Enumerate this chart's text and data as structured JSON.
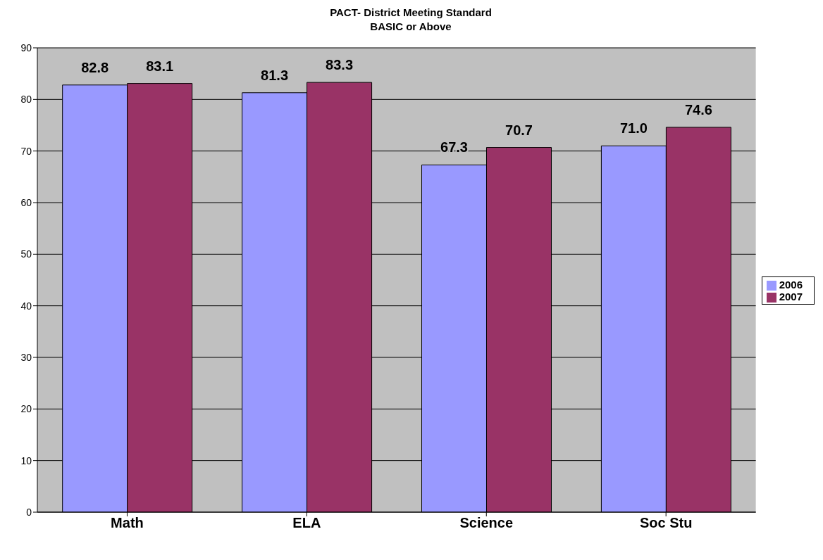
{
  "chart_data": {
    "type": "bar",
    "title": "PACT- District Meeting Standard",
    "subtitle": "BASIC or Above",
    "categories": [
      "Math",
      "ELA",
      "Science",
      "Soc Stu"
    ],
    "series": [
      {
        "name": "2006",
        "color": "#9999ff",
        "values": [
          82.8,
          81.3,
          67.3,
          71.0
        ],
        "value_labels": [
          "82.8",
          "81.3",
          "67.3",
          "71.0"
        ]
      },
      {
        "name": "2007",
        "color": "#993366",
        "values": [
          83.1,
          83.3,
          70.7,
          74.6
        ],
        "value_labels": [
          "83.1",
          "83.3",
          "70.7",
          "74.6"
        ]
      }
    ],
    "ylim": [
      0,
      90
    ],
    "yticks": [
      0,
      10,
      20,
      30,
      40,
      50,
      60,
      70,
      80,
      90
    ],
    "grid": "y",
    "legend": "right"
  }
}
